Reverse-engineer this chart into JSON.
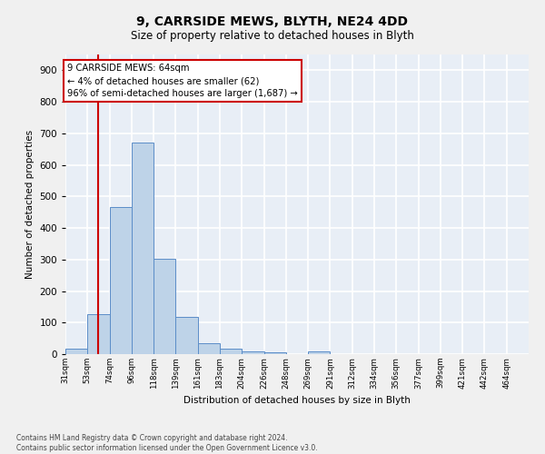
{
  "title1": "9, CARRSIDE MEWS, BLYTH, NE24 4DD",
  "title2": "Size of property relative to detached houses in Blyth",
  "xlabel": "Distribution of detached houses by size in Blyth",
  "ylabel": "Number of detached properties",
  "footnote": "Contains HM Land Registry data © Crown copyright and database right 2024.\nContains public sector information licensed under the Open Government Licence v3.0.",
  "bin_labels": [
    "31sqm",
    "53sqm",
    "74sqm",
    "96sqm",
    "118sqm",
    "139sqm",
    "161sqm",
    "183sqm",
    "204sqm",
    "226sqm",
    "248sqm",
    "269sqm",
    "291sqm",
    "312sqm",
    "334sqm",
    "356sqm",
    "377sqm",
    "399sqm",
    "421sqm",
    "442sqm",
    "464sqm"
  ],
  "bar_values": [
    18,
    127,
    465,
    672,
    302,
    118,
    35,
    18,
    10,
    7,
    0,
    10,
    0,
    0,
    0,
    0,
    0,
    0,
    0,
    0,
    0
  ],
  "property_bin_index": 1.5,
  "annotation_text": "9 CARRSIDE MEWS: 64sqm\n← 4% of detached houses are smaller (62)\n96% of semi-detached houses are larger (1,687) →",
  "bar_color": "#bed3e8",
  "bar_edge_color": "#5b8dc8",
  "line_color": "#cc0000",
  "box_color": "#cc0000",
  "ylim": [
    0,
    950
  ],
  "yticks": [
    0,
    100,
    200,
    300,
    400,
    500,
    600,
    700,
    800,
    900
  ],
  "background_color": "#e8eef6",
  "grid_color": "#ffffff",
  "fig_facecolor": "#f0f0f0",
  "title1_fontsize": 10,
  "title2_fontsize": 8.5
}
